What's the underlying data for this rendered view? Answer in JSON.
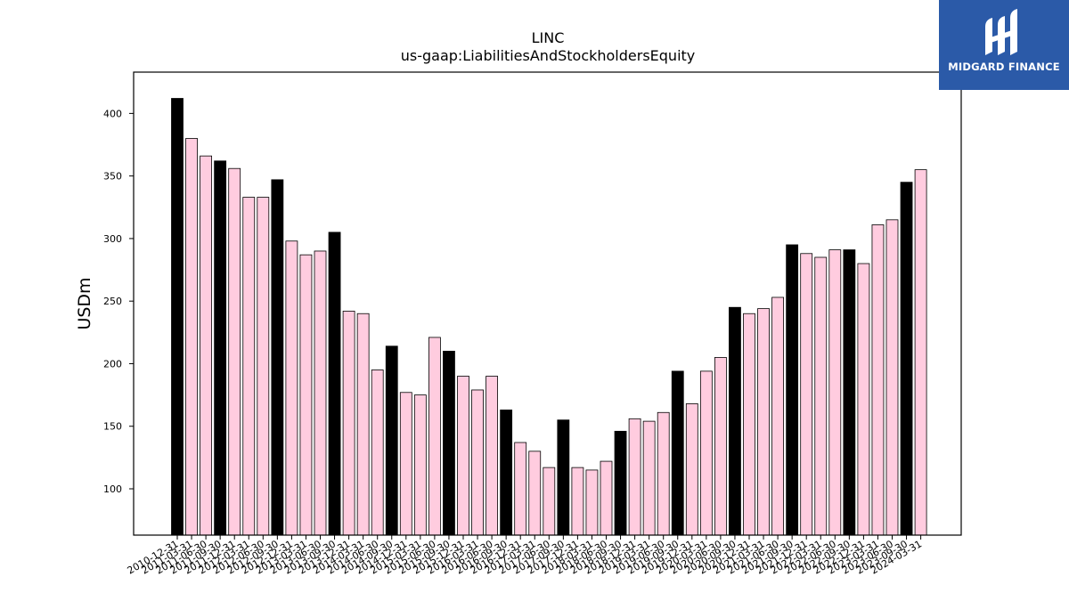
{
  "chart_data": {
    "type": "bar",
    "title": "LINC",
    "subtitle": "us-gaap:LiabilitiesAndStockholdersEquity",
    "ylabel": "USDm",
    "xlabel": "",
    "ylim": [
      63,
      433
    ],
    "yticks": [
      100,
      150,
      200,
      250,
      300,
      350,
      400
    ],
    "grid": false,
    "colors": {
      "annual": "#000000",
      "quarterly": "#ffccdf",
      "edge": "#000000"
    },
    "bars": [
      {
        "date": "2010-12-31",
        "value": 412,
        "annual": true
      },
      {
        "date": "2011-03-31",
        "value": 380,
        "annual": false
      },
      {
        "date": "2011-06-30",
        "value": 366,
        "annual": false
      },
      {
        "date": "2011-09-30",
        "value": 362,
        "annual": true
      },
      {
        "date": "2011-12-31",
        "value": 356,
        "annual": false
      },
      {
        "date": "2012-03-31",
        "value": 333,
        "annual": false
      },
      {
        "date": "2012-06-30",
        "value": 333,
        "annual": false
      },
      {
        "date": "2012-09-30",
        "value": 347,
        "annual": true
      },
      {
        "date": "2012-12-31",
        "value": 298,
        "annual": false
      },
      {
        "date": "2013-03-31",
        "value": 287,
        "annual": false
      },
      {
        "date": "2013-06-30",
        "value": 290,
        "annual": false
      },
      {
        "date": "2013-09-30",
        "value": 305,
        "annual": true
      },
      {
        "date": "2013-12-31",
        "value": 242,
        "annual": false
      },
      {
        "date": "2014-03-31",
        "value": 240,
        "annual": false
      },
      {
        "date": "2014-06-30",
        "value": 195,
        "annual": false
      },
      {
        "date": "2014-09-30",
        "value": 214,
        "annual": true
      },
      {
        "date": "2014-12-31",
        "value": 177,
        "annual": false
      },
      {
        "date": "2015-03-31",
        "value": 175,
        "annual": false
      },
      {
        "date": "2015-06-30",
        "value": 221,
        "annual": false
      },
      {
        "date": "2015-09-30",
        "value": 210,
        "annual": true
      },
      {
        "date": "2015-12-31",
        "value": 190,
        "annual": false
      },
      {
        "date": "2016-03-31",
        "value": 179,
        "annual": false
      },
      {
        "date": "2016-06-30",
        "value": 190,
        "annual": false
      },
      {
        "date": "2016-09-30",
        "value": 163,
        "annual": true
      },
      {
        "date": "2016-12-31",
        "value": 137,
        "annual": false
      },
      {
        "date": "2017-03-31",
        "value": 130,
        "annual": false
      },
      {
        "date": "2017-06-30",
        "value": 117,
        "annual": false
      },
      {
        "date": "2017-09-30",
        "value": 155,
        "annual": true
      },
      {
        "date": "2017-12-31",
        "value": 117,
        "annual": false
      },
      {
        "date": "2018-03-31",
        "value": 115,
        "annual": false
      },
      {
        "date": "2018-06-30",
        "value": 122,
        "annual": false
      },
      {
        "date": "2018-09-30",
        "value": 146,
        "annual": true
      },
      {
        "date": "2018-12-31",
        "value": 156,
        "annual": false
      },
      {
        "date": "2019-03-31",
        "value": 154,
        "annual": false
      },
      {
        "date": "2019-06-30",
        "value": 161,
        "annual": false
      },
      {
        "date": "2019-09-30",
        "value": 194,
        "annual": true
      },
      {
        "date": "2019-12-31",
        "value": 168,
        "annual": false
      },
      {
        "date": "2020-03-31",
        "value": 194,
        "annual": false
      },
      {
        "date": "2020-06-30",
        "value": 205,
        "annual": false
      },
      {
        "date": "2020-09-30",
        "value": 245,
        "annual": true
      },
      {
        "date": "2020-12-31",
        "value": 240,
        "annual": false
      },
      {
        "date": "2021-03-31",
        "value": 244,
        "annual": false
      },
      {
        "date": "2021-06-30",
        "value": 253,
        "annual": false
      },
      {
        "date": "2021-09-30",
        "value": 295,
        "annual": true
      },
      {
        "date": "2021-12-31",
        "value": 288,
        "annual": false
      },
      {
        "date": "2022-03-31",
        "value": 285,
        "annual": false
      },
      {
        "date": "2022-06-30",
        "value": 291,
        "annual": false
      },
      {
        "date": "2022-09-30",
        "value": 291,
        "annual": true
      },
      {
        "date": "2022-12-31",
        "value": 280,
        "annual": false
      },
      {
        "date": "2023-03-31",
        "value": 311,
        "annual": false
      },
      {
        "date": "2023-06-30",
        "value": 315,
        "annual": false
      },
      {
        "date": "2023-09-30",
        "value": 345,
        "annual": true
      },
      {
        "date": "2024-03-31",
        "value": 355,
        "annual": false
      }
    ]
  },
  "logo": {
    "text": "MIDGARD FINANCE",
    "background": "#2b5aa8"
  }
}
